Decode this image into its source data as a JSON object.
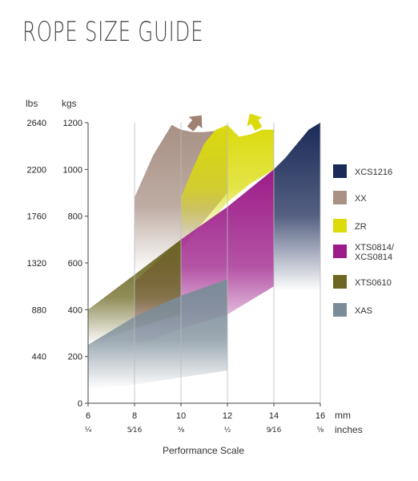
{
  "title": "ROPE SIZE GUIDE",
  "chart_data": {
    "type": "area",
    "title": "ROPE SIZE GUIDE",
    "xlabel": "Performance Scale",
    "y_units": {
      "left": "lbs",
      "right": "kgs"
    },
    "x_units": {
      "top": "mm",
      "bottom": "inches"
    },
    "xlim": [
      6,
      16
    ],
    "ylim": [
      0,
      1200
    ],
    "x_ticks_mm": [
      "6",
      "8",
      "10",
      "12",
      "14",
      "16"
    ],
    "x_ticks_inches": [
      "¼",
      "5⁄16",
      "⅜",
      "½",
      "9⁄16",
      "⅝"
    ],
    "y_ticks_kgs": [
      "0",
      "200",
      "400",
      "600",
      "800",
      "1000",
      "1200"
    ],
    "y_ticks_lbs": [
      "440",
      "880",
      "1320",
      "1760",
      "2200",
      "2640"
    ],
    "grid": "vertical",
    "legend_position": "right",
    "series": [
      {
        "name": "XCS1216",
        "color": "#1b2a58",
        "x": [
          14,
          14.5,
          15,
          15.5,
          16
        ],
        "upper": [
          1000,
          1050,
          1110,
          1170,
          1200
        ],
        "lower": [
          480,
          480,
          480,
          480,
          480
        ]
      },
      {
        "name": "XX",
        "color": "#a89084",
        "x": [
          8,
          8.8,
          9.6,
          10,
          10.5,
          11,
          11.5,
          12
        ],
        "upper": [
          880,
          1060,
          1190,
          1170,
          1160,
          1160,
          1165,
          1170
        ],
        "lower": [
          560,
          590,
          630,
          650,
          720,
          780,
          840,
          900
        ]
      },
      {
        "name": "ZR",
        "color": "#dbdb0c",
        "x": [
          10,
          10.5,
          11,
          11.5,
          12,
          12.5,
          13,
          13.5,
          14
        ],
        "upper": [
          880,
          1000,
          1110,
          1170,
          1190,
          1140,
          1150,
          1170,
          1170
        ],
        "lower": [
          700,
          720,
          760,
          800,
          860,
          900,
          940,
          970,
          1000
        ]
      },
      {
        "name": "XTS0814/\nXCS0814",
        "color": "#9c1b88",
        "x": [
          8,
          10,
          12,
          14
        ],
        "upper": [
          520,
          700,
          840,
          1000
        ],
        "lower": [
          240,
          320,
          380,
          500
        ]
      },
      {
        "name": "XTS0610",
        "color": "#6b6721",
        "x": [
          6,
          8,
          10
        ],
        "upper": [
          400,
          550,
          700
        ],
        "lower": [
          250,
          320,
          380
        ]
      },
      {
        "name": "XAS",
        "color": "#7b8c99",
        "x": [
          6,
          8,
          10,
          12
        ],
        "upper": [
          250,
          370,
          460,
          530
        ],
        "lower": [
          60,
          80,
          110,
          140
        ]
      }
    ],
    "annotations": [
      "up-arrow above XX",
      "up-arrow above ZR"
    ]
  }
}
